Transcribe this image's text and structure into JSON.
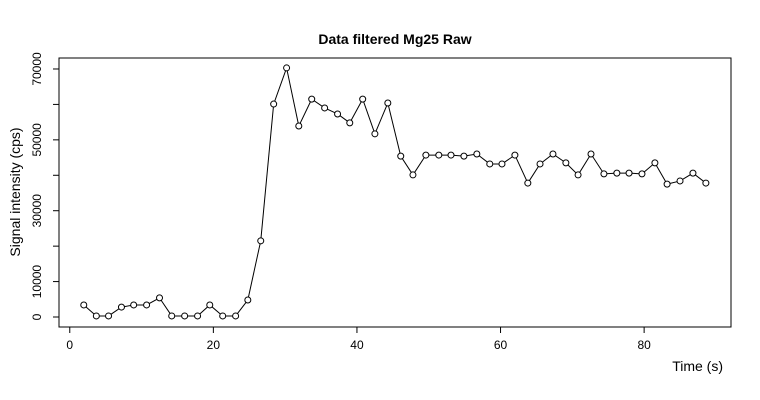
{
  "chart_data": {
    "type": "line",
    "title": "Data filtered Mg25 Raw",
    "x_label": "Time (s)",
    "y_label": "Signal intensity (cps)",
    "x": [
      1.95,
      3.7,
      5.4,
      7.2,
      8.9,
      10.7,
      12.5,
      14.2,
      16.0,
      17.8,
      19.5,
      21.3,
      23.1,
      24.8,
      26.6,
      28.4,
      30.2,
      31.9,
      33.7,
      35.5,
      37.3,
      39.0,
      40.8,
      42.5,
      44.3,
      46.1,
      47.8,
      49.6,
      51.4,
      53.1,
      54.9,
      56.7,
      58.5,
      60.2,
      62.0,
      63.8,
      65.5,
      67.3,
      69.1,
      70.8,
      72.6,
      74.4,
      76.2,
      77.9,
      79.7,
      81.5,
      83.2,
      85.0,
      86.8,
      88.6
    ],
    "series": [
      {
        "name": "Mg25",
        "color": "#000000",
        "values": [
          3400,
          300,
          300,
          2800,
          3400,
          3400,
          5400,
          300,
          300,
          300,
          3400,
          300,
          300,
          4800,
          21500,
          60100,
          70300,
          53900,
          61500,
          59000,
          57300,
          54800,
          61500,
          51700,
          60400,
          45400,
          40100,
          45700,
          45700,
          45700,
          45400,
          46000,
          43200,
          43200,
          45700,
          37800,
          43200,
          46000,
          43500,
          40100,
          46000,
          40400,
          40600,
          40600,
          40400,
          43500,
          37500,
          38400,
          40600,
          37800
        ]
      }
    ],
    "xlim": [
      -1.5,
      92.1
    ],
    "ylim": [
      -2820,
      73100
    ],
    "xticks": [
      0,
      20,
      40,
      60,
      80
    ],
    "yticks": [
      0,
      10000,
      {
        "value": 20000,
        "label": null
      },
      30000,
      {
        "value": 40000,
        "label": null
      },
      50000,
      {
        "value": 60000,
        "label": null
      },
      70000
    ],
    "grid": false
  }
}
